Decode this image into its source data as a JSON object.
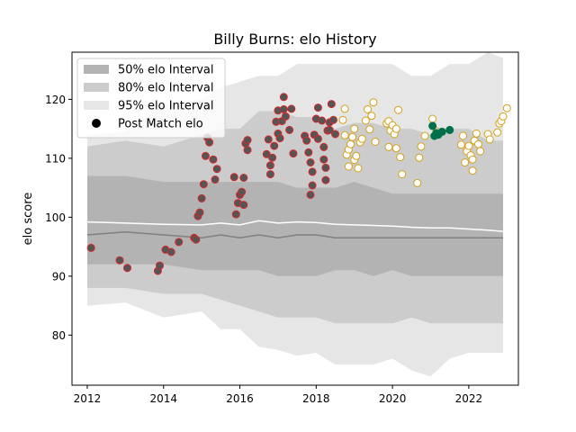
{
  "chart_data": {
    "type": "scatter",
    "title": "Billy Burns: elo History",
    "xlabel": "",
    "ylabel": "elo score",
    "xlim": [
      2011.6,
      2023.3
    ],
    "ylim": [
      71.5,
      128.0
    ],
    "x_ticks": [
      2012,
      2014,
      2016,
      2018,
      2020,
      2022
    ],
    "y_ticks": [
      80,
      90,
      100,
      110,
      120
    ],
    "grid": false,
    "legend_position": "top-left",
    "legend": [
      {
        "label": "50% elo Interval",
        "kind": "band",
        "color": "#b3b3b3"
      },
      {
        "label": "80% elo Interval",
        "kind": "band",
        "color": "#cccccc"
      },
      {
        "label": "95% elo Interval",
        "kind": "band",
        "color": "#e6e6e6"
      },
      {
        "label": "Post Match elo",
        "kind": "marker",
        "color": "#000000"
      }
    ],
    "colors": {
      "band50": "#b3b3b3",
      "band80": "#cccccc",
      "band95": "#e6e6e6",
      "median_line": "#808080",
      "mean_line": "#ffffff",
      "team1_fill": "#555555",
      "team1_edge": "#d62728",
      "team2_fill": "#ffffff",
      "team2_edge": "#d4a017",
      "team3_fill": "#00704a",
      "team3_edge": "#00704a"
    },
    "bands": {
      "x": [
        2012.0,
        2013.0,
        2014.0,
        2015.0,
        2015.5,
        2016.0,
        2016.5,
        2017.0,
        2017.5,
        2018.0,
        2018.5,
        2019.0,
        2019.5,
        2020.0,
        2020.5,
        2021.0,
        2021.5,
        2022.0,
        2022.5,
        2022.9
      ],
      "p95_low": [
        85,
        85.5,
        83,
        84,
        81,
        81,
        78,
        77.5,
        76.5,
        77,
        75,
        75,
        75,
        76,
        74,
        73,
        76,
        77,
        77,
        77
      ],
      "p95_high": [
        114,
        114.5,
        119,
        120,
        122,
        123,
        124,
        124,
        126,
        126,
        126,
        126,
        126,
        126,
        124,
        124,
        126,
        126,
        128,
        127
      ],
      "p80_low": [
        88,
        88,
        87,
        87,
        86,
        85,
        84,
        83,
        83,
        83,
        82,
        82,
        82,
        82,
        83,
        82,
        82,
        82,
        82,
        82
      ],
      "p80_high": [
        112,
        113,
        112,
        114,
        115,
        115,
        118,
        118,
        117,
        117,
        115,
        116,
        116,
        115,
        115,
        114,
        115,
        115,
        113,
        113
      ],
      "p50_low": [
        92,
        92,
        92,
        91,
        91,
        91,
        91,
        90,
        90,
        90,
        91,
        91,
        90,
        91,
        90,
        90,
        90,
        90,
        90,
        90
      ],
      "p50_high": [
        107,
        107,
        106,
        106,
        106,
        106,
        106,
        106,
        105,
        105,
        105,
        106,
        105,
        104,
        104,
        104,
        104,
        104,
        104,
        104
      ],
      "median": [
        97,
        97.5,
        97,
        96.5,
        97,
        96.5,
        97,
        96.5,
        97,
        97,
        96.5,
        96.5,
        96.5,
        96.5,
        96.5,
        96.5,
        96.5,
        96.5,
        96.5,
        96.5
      ],
      "mean": [
        99.2,
        99,
        98.8,
        98.7,
        99,
        98.7,
        99.4,
        99,
        99.2,
        99.1,
        98.8,
        98.7,
        98.6,
        98.5,
        98.3,
        98.2,
        98.2,
        98,
        97.8,
        97.6
      ]
    },
    "series": [
      {
        "style": "team1",
        "points": [
          [
            2012.1,
            94.8
          ],
          [
            2012.85,
            92.7
          ],
          [
            2013.05,
            91.4
          ],
          [
            2013.85,
            90.9
          ],
          [
            2013.9,
            91.8
          ],
          [
            2014.05,
            94.5
          ],
          [
            2014.2,
            94.1
          ],
          [
            2014.4,
            95.8
          ],
          [
            2014.8,
            96.5
          ],
          [
            2014.85,
            96.2
          ],
          [
            2014.9,
            100.2
          ],
          [
            2014.95,
            100.8
          ],
          [
            2015.0,
            103.2
          ],
          [
            2015.05,
            105.6
          ],
          [
            2015.1,
            110.4
          ],
          [
            2015.15,
            113.5
          ],
          [
            2015.2,
            112.7
          ],
          [
            2015.3,
            109.8
          ],
          [
            2015.35,
            106.4
          ],
          [
            2015.4,
            108.2
          ],
          [
            2015.85,
            106.8
          ],
          [
            2015.9,
            100.5
          ],
          [
            2015.95,
            102.4
          ],
          [
            2016.0,
            103.8
          ],
          [
            2016.05,
            104.3
          ],
          [
            2016.1,
            102.1
          ],
          [
            2016.1,
            106.7
          ],
          [
            2016.15,
            112.5
          ],
          [
            2016.2,
            113.1
          ],
          [
            2016.2,
            111.4
          ],
          [
            2016.7,
            110.7
          ],
          [
            2016.75,
            113.2
          ],
          [
            2016.8,
            108.8
          ],
          [
            2016.8,
            107.3
          ],
          [
            2016.85,
            110.1
          ],
          [
            2016.9,
            112.1
          ],
          [
            2016.95,
            116.2
          ],
          [
            2017.0,
            114.2
          ],
          [
            2017.0,
            118.1
          ],
          [
            2017.05,
            113.4
          ],
          [
            2017.1,
            116.3
          ],
          [
            2017.15,
            118.3
          ],
          [
            2017.15,
            120.4
          ],
          [
            2017.2,
            117.1
          ],
          [
            2017.3,
            114.8
          ],
          [
            2017.35,
            118.4
          ],
          [
            2017.7,
            113.8
          ],
          [
            2017.75,
            113.0
          ],
          [
            2017.8,
            111.0
          ],
          [
            2017.85,
            109.3
          ],
          [
            2017.85,
            103.8
          ],
          [
            2017.9,
            105.4
          ],
          [
            2017.9,
            107.7
          ],
          [
            2017.95,
            114.0
          ],
          [
            2018.0,
            116.7
          ],
          [
            2018.05,
            118.6
          ],
          [
            2018.05,
            113.3
          ],
          [
            2018.15,
            116.4
          ],
          [
            2018.2,
            109.8
          ],
          [
            2018.2,
            111.9
          ],
          [
            2018.25,
            108.4
          ],
          [
            2018.25,
            106.3
          ],
          [
            2018.3,
            114.7
          ],
          [
            2018.35,
            114.8
          ],
          [
            2018.35,
            116.1
          ],
          [
            2018.4,
            119.2
          ],
          [
            2018.45,
            116.5
          ],
          [
            2018.5,
            114.1
          ],
          [
            2017.4,
            110.8
          ]
        ]
      },
      {
        "style": "team2",
        "points": [
          [
            2018.7,
            116.5
          ],
          [
            2018.75,
            113.9
          ],
          [
            2018.75,
            118.4
          ],
          [
            2018.8,
            110.6
          ],
          [
            2018.85,
            111.5
          ],
          [
            2018.85,
            108.6
          ],
          [
            2018.9,
            112.4
          ],
          [
            2018.95,
            113.6
          ],
          [
            2019.0,
            115.0
          ],
          [
            2019.0,
            109.7
          ],
          [
            2019.05,
            110.4
          ],
          [
            2019.1,
            108.3
          ],
          [
            2019.15,
            112.7
          ],
          [
            2019.2,
            113.3
          ],
          [
            2019.3,
            116.4
          ],
          [
            2019.35,
            118.3
          ],
          [
            2019.4,
            114.9
          ],
          [
            2019.45,
            117.2
          ],
          [
            2019.5,
            119.5
          ],
          [
            2019.55,
            112.8
          ],
          [
            2019.85,
            115.9
          ],
          [
            2019.9,
            111.9
          ],
          [
            2019.9,
            116.3
          ],
          [
            2019.95,
            114.7
          ],
          [
            2020.0,
            115.6
          ],
          [
            2020.05,
            114.1
          ],
          [
            2020.1,
            111.7
          ],
          [
            2020.15,
            118.2
          ],
          [
            2020.2,
            110.2
          ],
          [
            2020.25,
            107.3
          ],
          [
            2020.1,
            115.0
          ],
          [
            2020.65,
            105.8
          ],
          [
            2020.7,
            110.1
          ],
          [
            2020.75,
            112.0
          ],
          [
            2020.85,
            113.8
          ],
          [
            2021.05,
            116.7
          ],
          [
            2021.15,
            114.6
          ],
          [
            2021.8,
            112.3
          ],
          [
            2021.85,
            113.8
          ],
          [
            2021.9,
            109.3
          ],
          [
            2021.95,
            111.2
          ],
          [
            2022.0,
            112.1
          ],
          [
            2022.05,
            110.5
          ],
          [
            2022.1,
            109.8
          ],
          [
            2022.15,
            113.0
          ],
          [
            2022.2,
            114.2
          ],
          [
            2022.25,
            112.4
          ],
          [
            2022.3,
            111.2
          ],
          [
            2022.5,
            114.1
          ],
          [
            2022.55,
            113.2
          ],
          [
            2022.75,
            114.4
          ],
          [
            2022.8,
            115.9
          ],
          [
            2022.85,
            116.3
          ],
          [
            2022.9,
            117.1
          ],
          [
            2023.0,
            118.5
          ],
          [
            2022.1,
            107.9
          ]
        ]
      },
      {
        "style": "team3",
        "points": [
          [
            2021.05,
            115.5
          ],
          [
            2021.1,
            113.8
          ],
          [
            2021.15,
            114.3
          ],
          [
            2021.2,
            114.0
          ],
          [
            2021.3,
            114.5
          ],
          [
            2021.5,
            114.8
          ]
        ]
      }
    ]
  }
}
